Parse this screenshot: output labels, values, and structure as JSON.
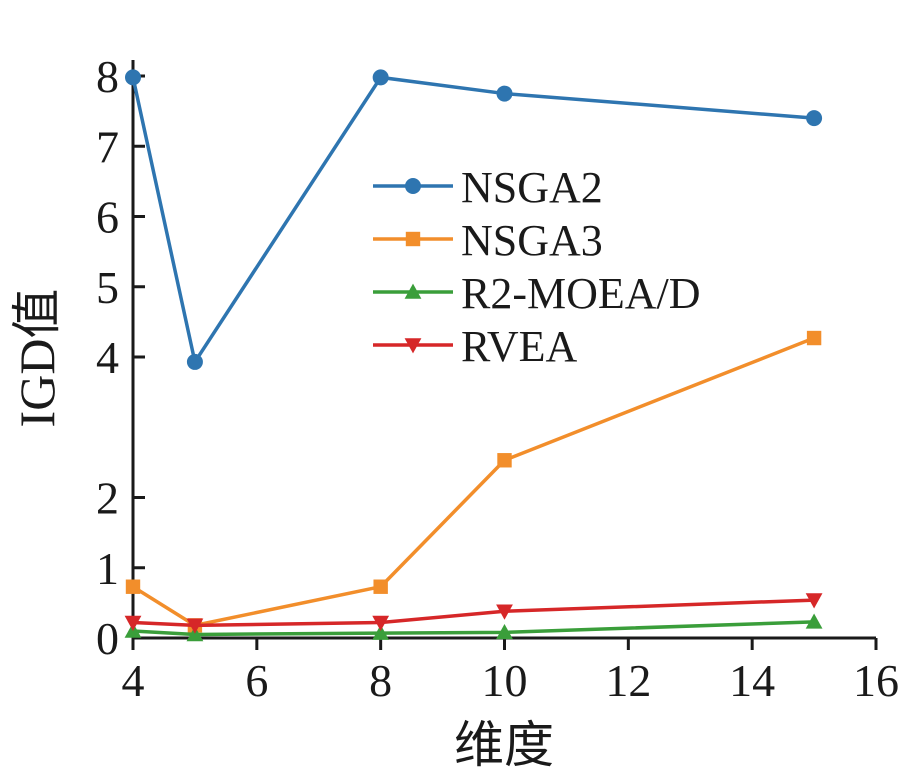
{
  "chart_data": {
    "type": "line",
    "xlabel": "维度",
    "ylabel": "IGD值",
    "x": [
      4,
      5,
      8,
      10,
      15
    ],
    "xlim": [
      4,
      16
    ],
    "x_ticks": [
      "4",
      "6",
      "8",
      "10",
      "12",
      "14",
      "16"
    ],
    "ylim": [
      0,
      8
    ],
    "y_tick_values": [
      0,
      1,
      2,
      4,
      5,
      6,
      7,
      8
    ],
    "y_ticks": [
      "0",
      "1",
      "2",
      "4",
      "5",
      "6",
      "7",
      "8"
    ],
    "grid": false,
    "legend_position": "top-center",
    "series": [
      {
        "name": "NSGA2",
        "color": "#2e75b0",
        "marker": "circle",
        "values": [
          7.98,
          3.93,
          7.98,
          7.75,
          7.4
        ]
      },
      {
        "name": "NSGA3",
        "color": "#f28e2b",
        "marker": "square",
        "values": [
          0.73,
          0.18,
          0.73,
          2.53,
          4.27
        ]
      },
      {
        "name": "R2-MOEA/D",
        "color": "#3a9e3a",
        "marker": "triangle-up",
        "values": [
          0.1,
          0.05,
          0.07,
          0.08,
          0.23
        ]
      },
      {
        "name": "RVEA",
        "color": "#d62728",
        "marker": "triangle-down",
        "values": [
          0.22,
          0.18,
          0.22,
          0.38,
          0.54
        ]
      }
    ]
  }
}
